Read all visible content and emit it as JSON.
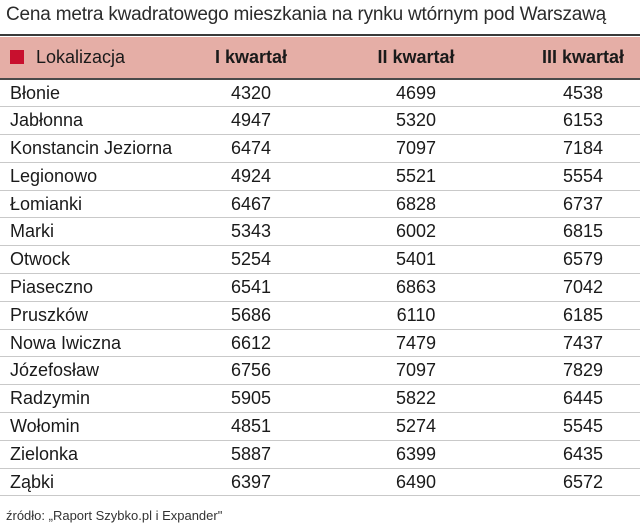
{
  "chart_data": {
    "type": "table",
    "title": "Cena metra kwadratowego mieszkania na rynku wtórnym pod Warszawą",
    "columns": [
      "Lokalizacja",
      "I kwartał",
      "II kwartał",
      "III kwartał"
    ],
    "rows": [
      {
        "name": "Błonie",
        "values": [
          4320,
          4699,
          4538
        ]
      },
      {
        "name": "Jabłonna",
        "values": [
          4947,
          5320,
          6153
        ]
      },
      {
        "name": "Konstancin Jeziorna",
        "values": [
          6474,
          7097,
          7184
        ]
      },
      {
        "name": "Legionowo",
        "values": [
          4924,
          5521,
          5554
        ]
      },
      {
        "name": "Łomianki",
        "values": [
          6467,
          6828,
          6737
        ]
      },
      {
        "name": "Marki",
        "values": [
          5343,
          6002,
          6815
        ]
      },
      {
        "name": "Otwock",
        "values": [
          5254,
          5401,
          6579
        ]
      },
      {
        "name": "Piaseczno",
        "values": [
          6541,
          6863,
          7042
        ]
      },
      {
        "name": "Pruszków",
        "values": [
          5686,
          6110,
          6185
        ]
      },
      {
        "name": "Nowa Iwiczna",
        "values": [
          6612,
          7479,
          7437
        ]
      },
      {
        "name": "Józefosław",
        "values": [
          6756,
          7097,
          7829
        ]
      },
      {
        "name": "Radzymin",
        "values": [
          5905,
          5822,
          6445
        ]
      },
      {
        "name": "Wołomin",
        "values": [
          4851,
          5274,
          5545
        ]
      },
      {
        "name": "Zielonka",
        "values": [
          5887,
          6399,
          6435
        ]
      },
      {
        "name": "Ząbki",
        "values": [
          6397,
          6490,
          6572
        ]
      }
    ],
    "source": "źródło: „Raport Szybko.pl i Expander\"",
    "colors": {
      "header_bg": "#e5aea6",
      "marker": "#c8102e"
    },
    "marker_icon": "square-marker-icon"
  }
}
